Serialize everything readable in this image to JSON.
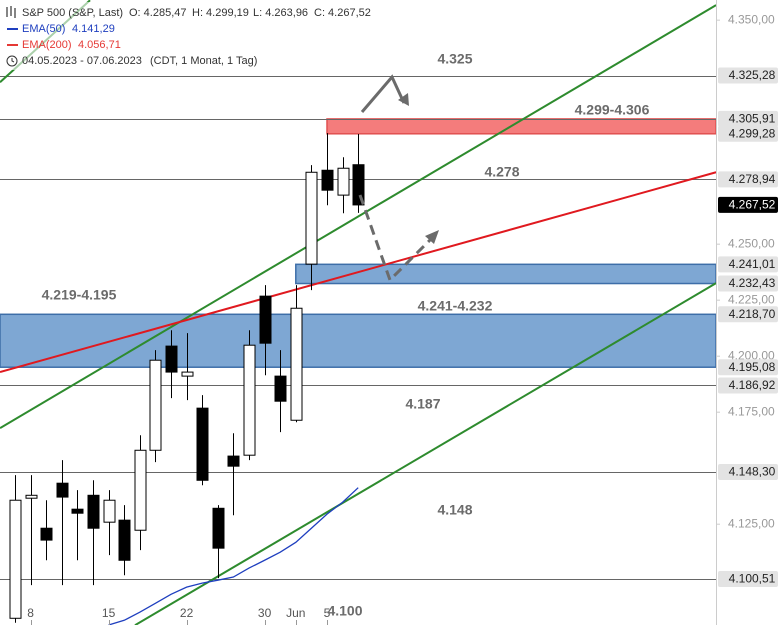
{
  "chart_data": {
    "type": "candlestick",
    "title": "S&P 500 (S&P, Last)",
    "header": {
      "open": "O: 4.285,47",
      "high": "H: 4.299,19",
      "low": "L: 4.263,96",
      "close": "C: 4.267,52",
      "range": "04.05.2023 - 07.06.2023",
      "settings": "(CDT, 1 Monat, 1 Tag)"
    },
    "categories": [
      null,
      "8",
      null,
      null,
      null,
      null,
      "15",
      null,
      null,
      null,
      null,
      "22",
      null,
      null,
      null,
      null,
      "30",
      null,
      "Jun",
      null,
      "5",
      null,
      null
    ],
    "open": [
      4083.0,
      4136.6,
      4123.2,
      4143.3,
      4131.7,
      4137.9,
      4125.9,
      4126.8,
      4122.3,
      4158.0,
      4204.5,
      4191.1,
      4176.8,
      4132.1,
      4155.4,
      4155.8,
      4226.8,
      4191.1,
      4171.4,
      4241.1,
      4283.0,
      4271.9,
      4285.47
    ],
    "high": [
      4146.9,
      4146.9,
      4135.7,
      4153.6,
      4140.2,
      4144.6,
      4140.2,
      4133.5,
      4164.7,
      4202.7,
      4211.6,
      4210.3,
      4182.6,
      4133.5,
      4165.6,
      4211.6,
      4231.7,
      4202.7,
      4231.7,
      4285.3,
      4299.6,
      4288.8,
      4299.19
    ],
    "low": [
      4081.0,
      4097.8,
      4108.9,
      4097.8,
      4108.9,
      4097.8,
      4111.2,
      4102.2,
      4113.4,
      4152.7,
      4181.3,
      4180.4,
      4142.4,
      4100.9,
      4129.0,
      4153.6,
      4191.5,
      4166.1,
      4170.5,
      4229.5,
      4267.4,
      4263.8,
      4263.96
    ],
    "close": [
      4135.7,
      4137.9,
      4117.9,
      4137.1,
      4129.9,
      4123.2,
      4135.7,
      4108.9,
      4158.0,
      4198.2,
      4192.9,
      4192.9,
      4144.6,
      4114.3,
      4150.9,
      4204.9,
      4205.8,
      4179.9,
      4221.4,
      4282.1,
      4274.1,
      4283.9,
      4267.52
    ],
    "up_color": "#ffffff",
    "down_color": "#000000",
    "indicators": [
      {
        "name": "EMA(50)",
        "color": "#1f3fbf",
        "last_label": "4.141,29",
        "values": [
          null,
          null,
          null,
          null,
          null,
          null,
          4080.0,
          4082.1,
          4085.7,
          4089.7,
          4093.7,
          4096.9,
          4098.7,
          4100.0,
          4101.4,
          4105.4,
          4108.9,
          4112.5,
          4116.9,
          4123.2,
          4129.5,
          4134.8,
          4141.29
        ]
      },
      {
        "name": "EMA(200)",
        "color": "#e53935",
        "last_label": "4.056,71",
        "values": [
          null,
          null,
          null,
          null,
          null,
          null,
          null,
          null,
          null,
          null,
          null,
          null,
          null,
          null,
          null,
          null,
          null,
          null,
          null,
          null,
          null,
          null,
          null
        ]
      }
    ],
    "trendlines": [
      {
        "color": "#2e8b2e",
        "points": [
          [
            -0.96,
            4167.9
          ],
          [
            44.94,
            4356.7
          ]
        ]
      },
      {
        "color": "#2e8b2e",
        "points": [
          [
            7.69,
            4079.9
          ],
          [
            44.94,
            4232.6
          ]
        ]
      },
      {
        "color": "#2e8b2e",
        "points": [
          [
            -0.96,
            4322.3
          ],
          [
            4.81,
            4358.9
          ]
        ]
      },
      {
        "color": "#e0191f",
        "points": [
          [
            -0.96,
            4192.9
          ],
          [
            44.94,
            4282.1
          ]
        ]
      }
    ],
    "ylim": [
      4080,
      4359
    ],
    "yticks": [
      {
        "value": 4350,
        "label": "4.350,00"
      },
      {
        "value": 4250,
        "label": "4.250,00"
      },
      {
        "value": 4225,
        "label": "4.225,00"
      },
      {
        "value": 4200,
        "label": "4.200,00"
      },
      {
        "value": 4175,
        "label": "4.175,00"
      },
      {
        "value": 4125,
        "label": "4.125,00"
      }
    ],
    "zones": [
      {
        "from": 4299.28,
        "to": 4305.91,
        "color": "#f47c7c",
        "border": "#e05050",
        "start": 20,
        "label": "4.299-4.306"
      },
      {
        "from": 4232.43,
        "to": 4241.01,
        "color": "#7ea7d3",
        "border": "#3d6ea8",
        "start": 18,
        "label": "4.241-4.232"
      },
      {
        "from": 4195.08,
        "to": 4218.7,
        "color": "#7ea7d3",
        "border": "#3d6ea8",
        "start": null,
        "label": "4.219-4.195"
      }
    ],
    "levels": [
      {
        "value": 4325.28,
        "label": "4.325,28",
        "line": true
      },
      {
        "value": 4305.91,
        "label": "4.305,91",
        "line": true
      },
      {
        "value": 4299.28,
        "label": "4.299,28",
        "line": false
      },
      {
        "value": 4278.94,
        "label": "4.278,94",
        "line": true
      },
      {
        "value": 4267.52,
        "label": "4.267,52",
        "line": false,
        "current": true
      },
      {
        "value": 4241.01,
        "label": "4.241,01",
        "line": false
      },
      {
        "value": 4232.43,
        "label": "4.232,43",
        "line": false
      },
      {
        "value": 4218.7,
        "label": "4.218,70",
        "line": false
      },
      {
        "value": 4195.08,
        "label": "4.195,08",
        "line": false
      },
      {
        "value": 4186.92,
        "label": "4.186,92",
        "line": true
      },
      {
        "value": 4148.3,
        "label": "4.148,30",
        "line": true
      },
      {
        "value": 4100.51,
        "label": "4.100,51",
        "line": true
      }
    ],
    "annotations": [
      "4.325",
      "4.278",
      "4.187",
      "4.148",
      "4.100"
    ]
  }
}
